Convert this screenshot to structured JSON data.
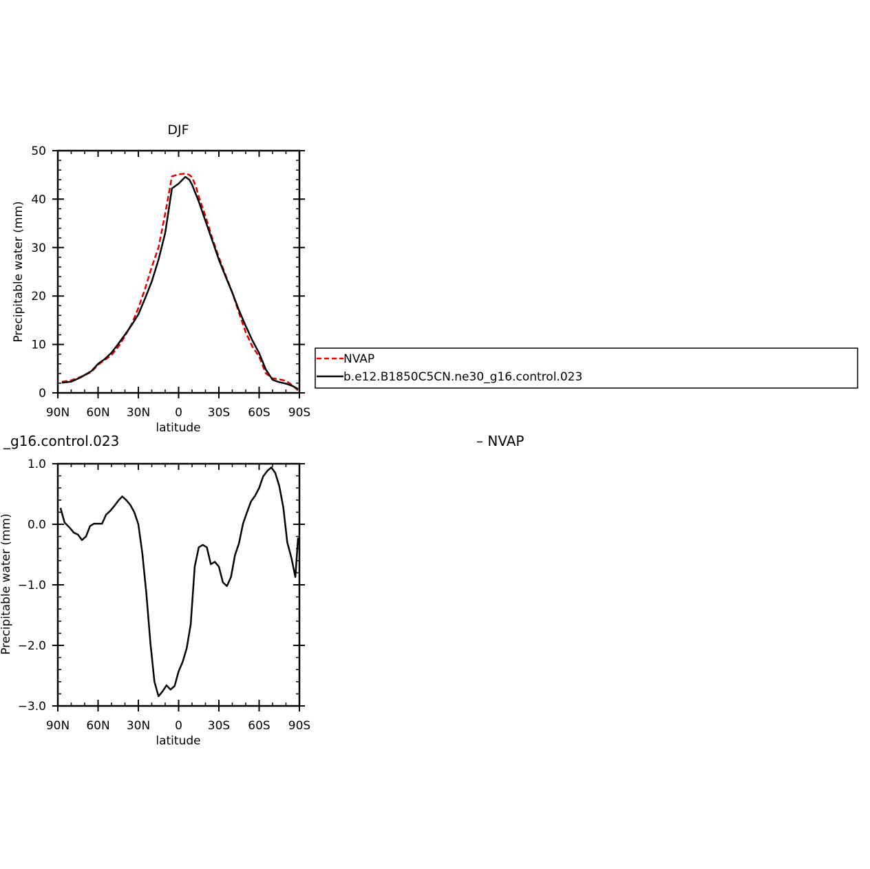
{
  "colors": {
    "nvap": "#e00000",
    "model": "#000000",
    "axis": "#000000"
  },
  "legend": {
    "entries": [
      {
        "label": "NVAP",
        "color": "#e00000",
        "dash": true
      },
      {
        "label": "b.e12.B1850C5CN.ne30_g16.control.023",
        "color": "#000000",
        "dash": false
      }
    ]
  },
  "chart_data": [
    {
      "type": "line",
      "title": "DJF",
      "xlabel": "latitude",
      "ylabel": "Precipitable water (mm)",
      "xlim": [
        90,
        -90
      ],
      "ylim": [
        0,
        50
      ],
      "xticks": [
        90,
        60,
        30,
        0,
        -30,
        -60,
        -90
      ],
      "xtick_labels": [
        "90N",
        "60N",
        "30N",
        "0",
        "30S",
        "60S",
        "90S"
      ],
      "yticks": [
        0,
        10,
        20,
        30,
        40,
        50
      ],
      "ytick_labels": [
        "0",
        "10",
        "20",
        "30",
        "40",
        "50"
      ],
      "series": [
        {
          "name": "NVAP",
          "style": "dashed",
          "x": [
            87,
            80,
            73,
            65,
            60,
            55,
            50,
            45,
            40,
            35,
            30,
            25,
            20,
            15,
            10,
            5,
            0,
            -3,
            -5,
            -8,
            -10,
            -13,
            -15,
            -20,
            -25,
            -30,
            -35,
            -40,
            -45,
            -50,
            -55,
            -60,
            -65,
            -70,
            -75,
            -80,
            -85,
            -89
          ],
          "y": [
            2.3,
            2.6,
            3.3,
            4.3,
            5.8,
            6.8,
            7.8,
            9.5,
            11.7,
            14.2,
            17.5,
            21.5,
            26,
            30,
            37,
            44.7,
            45.1,
            45.2,
            45.3,
            45.0,
            44.5,
            42.5,
            40.5,
            36.5,
            32,
            28,
            24.3,
            20.7,
            16.5,
            12.5,
            9.5,
            7.5,
            4,
            3,
            2.8,
            2.5,
            1.5,
            0.5
          ]
        },
        {
          "name": "b.e12.B1850C5CN.ne30_g16.control.023",
          "style": "solid",
          "x": [
            87,
            80,
            73,
            65,
            60,
            55,
            50,
            45,
            40,
            35,
            30,
            25,
            20,
            15,
            10,
            5,
            0,
            -5,
            -8,
            -10,
            -15,
            -20,
            -25,
            -30,
            -35,
            -40,
            -45,
            -50,
            -55,
            -60,
            -65,
            -70,
            -75,
            -80,
            -85,
            -89
          ],
          "y": [
            2.1,
            2.3,
            3.2,
            4.5,
            6.0,
            7.0,
            8.3,
            10.1,
            12.0,
            14.0,
            16.2,
            19.5,
            23,
            27.5,
            33,
            42.2,
            43.2,
            44.6,
            44,
            43,
            39.5,
            35.5,
            31.5,
            27.5,
            24,
            20.7,
            17,
            13.8,
            10.8,
            8.2,
            4.8,
            2.7,
            2.2,
            1.9,
            1.4,
            0.8
          ]
        }
      ]
    },
    {
      "type": "line",
      "title_left": "_g16.control.023",
      "title_right": "–  NVAP",
      "xlabel": "latitude",
      "ylabel": "Precipitable water (mm)",
      "xlim": [
        90,
        -90
      ],
      "ylim": [
        -3.0,
        1.0
      ],
      "xticks": [
        90,
        60,
        30,
        0,
        -30,
        -60,
        -90
      ],
      "xtick_labels": [
        "90N",
        "60N",
        "30N",
        "0",
        "30S",
        "60S",
        "90S"
      ],
      "yticks": [
        1.0,
        0.0,
        -1.0,
        -2.0,
        -3.0
      ],
      "ytick_labels": [
        "1.0",
        "0.0",
        "−1.0",
        "−2.0",
        "−3.0"
      ],
      "series": [
        {
          "name": "",
          "style": "solid",
          "x": [
            88,
            85,
            81,
            78,
            75,
            72,
            69,
            66,
            63,
            60,
            57,
            54,
            51,
            48,
            45,
            42,
            39,
            36,
            33,
            30,
            27,
            24,
            21,
            18,
            15,
            12,
            9,
            6,
            3,
            0,
            -3,
            -6,
            -9,
            -12,
            -15,
            -18,
            -21,
            -24,
            -27,
            -30,
            -33,
            -36,
            -39,
            -42,
            -45,
            -48,
            -51,
            -54,
            -57,
            -60,
            -63,
            -66,
            -69,
            -72,
            -75,
            -78,
            -81,
            -84,
            -87,
            -89
          ],
          "y": [
            0.27,
            0.03,
            -0.06,
            -0.14,
            -0.17,
            -0.26,
            -0.2,
            -0.03,
            0.01,
            0.01,
            0.01,
            0.16,
            0.22,
            0.3,
            0.39,
            0.46,
            0.4,
            0.32,
            0.2,
            0.0,
            -0.48,
            -1.15,
            -1.97,
            -2.6,
            -2.84,
            -2.76,
            -2.66,
            -2.73,
            -2.67,
            -2.43,
            -2.27,
            -2.05,
            -1.65,
            -0.7,
            -0.38,
            -0.34,
            -0.38,
            -0.66,
            -0.62,
            -0.7,
            -0.96,
            -1.02,
            -0.87,
            -0.51,
            -0.31,
            0.01,
            0.2,
            0.38,
            0.47,
            0.6,
            0.79,
            0.88,
            0.94,
            0.85,
            0.63,
            0.28,
            -0.3,
            -0.55,
            -0.87,
            -0.22
          ]
        }
      ]
    }
  ]
}
